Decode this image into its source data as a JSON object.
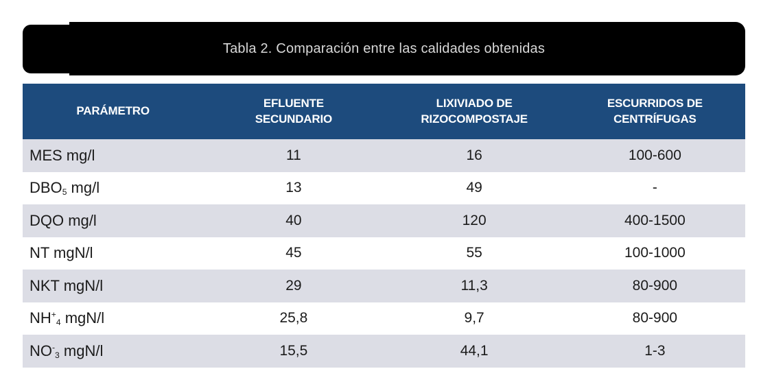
{
  "title_bar": {
    "title": "Tabla 2. Comparación entre las calidades obtenidas"
  },
  "colors": {
    "title_bar_bg": "#000000",
    "title_text": "#d8d8d8",
    "header_bg": "#1d4b7d",
    "header_text": "#ffffff",
    "row_alt_bg": "#dcdde5",
    "row_bg": "#ffffff",
    "body_text": "#1b1b1b"
  },
  "chart_data": {
    "type": "table",
    "title": "Tabla 2. Comparación entre las calidades obtenidas",
    "columns": [
      {
        "lines": [
          "PARÁMETRO"
        ]
      },
      {
        "lines": [
          "EFLUENTE",
          "SECUNDARIO"
        ]
      },
      {
        "lines": [
          "LIXIVIADO DE",
          "RIZOCOMPOSTAJE"
        ]
      },
      {
        "lines": [
          "ESCURRIDOS DE",
          "CENTRÍFUGAS"
        ]
      }
    ],
    "rows": [
      {
        "parameter_parts": [
          {
            "t": "MES mg/l"
          }
        ],
        "parameter_plain": "MES mg/l",
        "values": [
          "11",
          "16",
          "100-600"
        ]
      },
      {
        "parameter_parts": [
          {
            "t": "DBO"
          },
          {
            "t": "5",
            "v": "sub"
          },
          {
            "t": " mg/l"
          }
        ],
        "parameter_plain": "DBO5 mg/l",
        "values": [
          "13",
          "49",
          "-"
        ]
      },
      {
        "parameter_parts": [
          {
            "t": "DQO mg/l"
          }
        ],
        "parameter_plain": "DQO mg/l",
        "values": [
          "40",
          "120",
          "400-1500"
        ]
      },
      {
        "parameter_parts": [
          {
            "t": "NT mgN/l"
          }
        ],
        "parameter_plain": "NT mgN/l",
        "values": [
          "45",
          "55",
          "100-1000"
        ]
      },
      {
        "parameter_parts": [
          {
            "t": "NKT mgN/l"
          }
        ],
        "parameter_plain": "NKT mgN/l",
        "values": [
          "29",
          "11,3",
          "80-900"
        ]
      },
      {
        "parameter_parts": [
          {
            "t": "NH"
          },
          {
            "t": "+",
            "v": "sup"
          },
          {
            "t": "4",
            "v": "sub"
          },
          {
            "t": " mgN/l"
          }
        ],
        "parameter_plain": "NH+4 mgN/l",
        "values": [
          "25,8",
          "9,7",
          "80-900"
        ]
      },
      {
        "parameter_parts": [
          {
            "t": "NO"
          },
          {
            "t": "-",
            "v": "sup"
          },
          {
            "t": "3",
            "v": "sub"
          },
          {
            "t": " mgN/l"
          }
        ],
        "parameter_plain": "NO-3 mgN/l",
        "values": [
          "15,5",
          "44,1",
          "1-3"
        ]
      }
    ]
  }
}
